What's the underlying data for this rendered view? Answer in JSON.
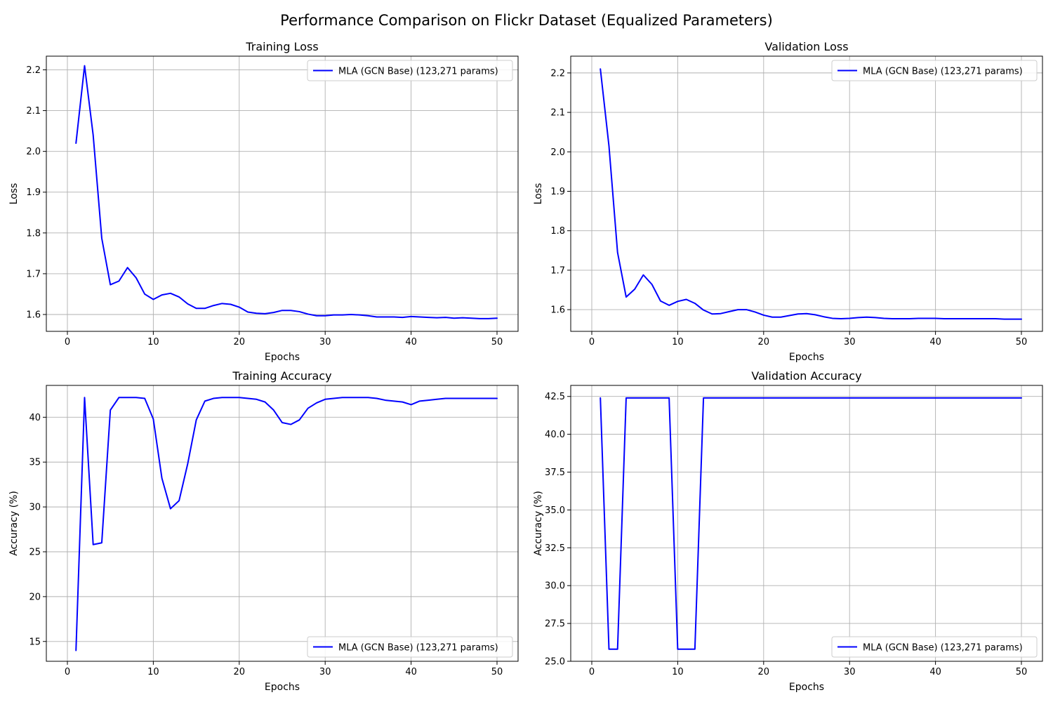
{
  "figure": {
    "title": "Performance Comparison on Flickr Dataset (Equalized Parameters)"
  },
  "chart_data": [
    {
      "type": "line",
      "title": "Training Loss",
      "xlabel": "Epochs",
      "ylabel": "Loss",
      "xlim": [
        -2.45,
        52.45
      ],
      "ylim": [
        1.5587,
        2.2335
      ],
      "xticks": [
        0,
        10,
        20,
        30,
        40,
        50
      ],
      "yticks": [
        1.6,
        1.7,
        1.8,
        1.9,
        2.0,
        2.1,
        2.2
      ],
      "ytick_labels": [
        "1.6",
        "1.7",
        "1.8",
        "1.9",
        "2.0",
        "2.1",
        "2.2"
      ],
      "grid": true,
      "legend_position": "upper right",
      "series": [
        {
          "name": "MLA (GCN Base) (123,271 params)",
          "color": "#0000ff",
          "x": [
            1,
            2,
            3,
            4,
            5,
            6,
            7,
            8,
            9,
            10,
            11,
            12,
            13,
            14,
            15,
            16,
            17,
            18,
            19,
            20,
            21,
            22,
            23,
            24,
            25,
            26,
            27,
            28,
            29,
            30,
            31,
            32,
            33,
            34,
            35,
            36,
            37,
            38,
            39,
            40,
            41,
            42,
            43,
            44,
            45,
            46,
            47,
            48,
            49,
            50
          ],
          "y": [
            2.02,
            2.21,
            2.04,
            1.787,
            1.673,
            1.682,
            1.715,
            1.69,
            1.65,
            1.637,
            1.648,
            1.652,
            1.643,
            1.626,
            1.615,
            1.615,
            1.622,
            1.627,
            1.625,
            1.618,
            1.606,
            1.603,
            1.602,
            1.605,
            1.61,
            1.61,
            1.607,
            1.601,
            1.597,
            1.597,
            1.599,
            1.599,
            1.6,
            1.599,
            1.597,
            1.594,
            1.594,
            1.594,
            1.593,
            1.595,
            1.594,
            1.593,
            1.592,
            1.593,
            1.591,
            1.592,
            1.591,
            1.59,
            1.59,
            1.591
          ]
        }
      ]
    },
    {
      "type": "line",
      "title": "Validation Loss",
      "xlabel": "Epochs",
      "ylabel": "Loss",
      "xlim": [
        -2.45,
        52.45
      ],
      "ylim": [
        1.545,
        2.2425
      ],
      "xticks": [
        0,
        10,
        20,
        30,
        40,
        50
      ],
      "yticks": [
        1.6,
        1.7,
        1.8,
        1.9,
        2.0,
        2.1,
        2.2
      ],
      "ytick_labels": [
        "1.6",
        "1.7",
        "1.8",
        "1.9",
        "2.0",
        "2.1",
        "2.2"
      ],
      "grid": true,
      "legend_position": "upper right",
      "series": [
        {
          "name": "MLA (GCN Base) (123,271 params)",
          "color": "#0000ff",
          "x": [
            1,
            2,
            3,
            4,
            5,
            6,
            7,
            8,
            9,
            10,
            11,
            12,
            13,
            14,
            15,
            16,
            17,
            18,
            19,
            20,
            21,
            22,
            23,
            24,
            25,
            26,
            27,
            28,
            29,
            30,
            31,
            32,
            33,
            34,
            35,
            36,
            37,
            38,
            39,
            40,
            41,
            42,
            43,
            44,
            45,
            46,
            47,
            48,
            49,
            50
          ],
          "y": [
            2.21,
            2.015,
            1.745,
            1.632,
            1.652,
            1.688,
            1.664,
            1.622,
            1.611,
            1.621,
            1.626,
            1.616,
            1.599,
            1.589,
            1.59,
            1.595,
            1.6,
            1.6,
            1.594,
            1.586,
            1.581,
            1.581,
            1.585,
            1.589,
            1.59,
            1.587,
            1.582,
            1.578,
            1.577,
            1.578,
            1.58,
            1.581,
            1.58,
            1.578,
            1.577,
            1.577,
            1.577,
            1.578,
            1.578,
            1.578,
            1.577,
            1.577,
            1.577,
            1.577,
            1.577,
            1.577,
            1.577,
            1.576,
            1.576,
            1.576
          ]
        }
      ]
    },
    {
      "type": "line",
      "title": "Training Accuracy",
      "xlabel": "Epochs",
      "ylabel": "Accuracy (%)",
      "xlim": [
        -2.45,
        52.45
      ],
      "ylim": [
        12.79,
        43.55
      ],
      "xticks": [
        0,
        10,
        20,
        30,
        40,
        50
      ],
      "yticks": [
        15,
        20,
        25,
        30,
        35,
        40
      ],
      "ytick_labels": [
        "15",
        "20",
        "25",
        "30",
        "35",
        "40"
      ],
      "grid": true,
      "legend_position": "lower right",
      "series": [
        {
          "name": "MLA (GCN Base) (123,271 params)",
          "color": "#0000ff",
          "x": [
            1,
            2,
            3,
            4,
            5,
            6,
            7,
            8,
            9,
            10,
            11,
            12,
            13,
            14,
            15,
            16,
            17,
            18,
            19,
            20,
            21,
            22,
            23,
            24,
            25,
            26,
            27,
            28,
            29,
            30,
            31,
            32,
            33,
            34,
            35,
            36,
            37,
            38,
            39,
            40,
            41,
            42,
            43,
            44,
            45,
            46,
            47,
            48,
            49,
            50
          ],
          "y": [
            14.0,
            42.2,
            25.8,
            26.0,
            40.8,
            42.2,
            42.2,
            42.2,
            42.1,
            39.8,
            33.2,
            29.8,
            30.7,
            34.8,
            39.7,
            41.8,
            42.1,
            42.2,
            42.2,
            42.2,
            42.1,
            42.0,
            41.7,
            40.8,
            39.4,
            39.2,
            39.7,
            41.0,
            41.6,
            42.0,
            42.1,
            42.2,
            42.2,
            42.2,
            42.2,
            42.1,
            41.9,
            41.8,
            41.7,
            41.4,
            41.8,
            41.9,
            42.0,
            42.1,
            42.1,
            42.1,
            42.1,
            42.1,
            42.1,
            42.1
          ]
        }
      ]
    },
    {
      "type": "line",
      "title": "Validation Accuracy",
      "xlabel": "Epochs",
      "ylabel": "Accuracy (%)",
      "xlim": [
        -2.45,
        52.45
      ],
      "ylim": [
        25.0,
        43.23
      ],
      "xticks": [
        0,
        10,
        20,
        30,
        40,
        50
      ],
      "yticks": [
        25.0,
        27.5,
        30.0,
        32.5,
        35.0,
        37.5,
        40.0,
        42.5
      ],
      "ytick_labels": [
        "25.0",
        "27.5",
        "30.0",
        "32.5",
        "35.0",
        "37.5",
        "40.0",
        "42.5"
      ],
      "grid": true,
      "legend_position": "lower right",
      "series": [
        {
          "name": "MLA (GCN Base) (123,271 params)",
          "color": "#0000ff",
          "x": [
            1,
            2,
            3,
            4,
            5,
            6,
            7,
            8,
            9,
            10,
            11,
            12,
            13,
            14,
            15,
            16,
            17,
            18,
            19,
            20,
            21,
            22,
            23,
            24,
            25,
            26,
            27,
            28,
            29,
            30,
            31,
            32,
            33,
            34,
            35,
            36,
            37,
            38,
            39,
            40,
            41,
            42,
            43,
            44,
            45,
            46,
            47,
            48,
            49,
            50
          ],
          "y": [
            42.4,
            25.8,
            25.8,
            42.4,
            42.4,
            42.4,
            42.4,
            42.4,
            42.4,
            25.8,
            25.8,
            25.8,
            42.4,
            42.4,
            42.4,
            42.4,
            42.4,
            42.4,
            42.4,
            42.4,
            42.4,
            42.4,
            42.4,
            42.4,
            42.4,
            42.4,
            42.4,
            42.4,
            42.4,
            42.4,
            42.4,
            42.4,
            42.4,
            42.4,
            42.4,
            42.4,
            42.4,
            42.4,
            42.4,
            42.4,
            42.4,
            42.4,
            42.4,
            42.4,
            42.4,
            42.4,
            42.4,
            42.4,
            42.4,
            42.4
          ]
        }
      ]
    }
  ]
}
